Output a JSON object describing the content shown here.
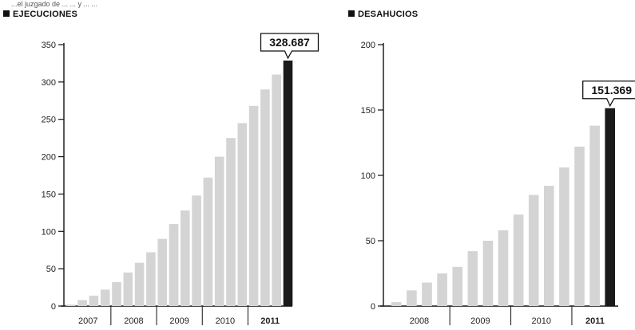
{
  "header": {
    "top_text": "...el juzgado de ... ... y ... ..."
  },
  "colors": {
    "bar": "#d4d4d4",
    "highlight": "#1a1a1a",
    "axis": "#111111"
  },
  "chart_data": [
    {
      "type": "bar",
      "title": "EJECUCIONES",
      "ylim": [
        0,
        350
      ],
      "yticks": [
        0,
        50,
        100,
        150,
        200,
        250,
        300,
        350
      ],
      "xgroups": [
        "2007",
        "2008",
        "2009",
        "2010",
        "2011"
      ],
      "highlight": {
        "label": "328.687",
        "value": 328.687
      },
      "values": [
        2,
        8,
        14,
        22,
        32,
        45,
        58,
        72,
        90,
        110,
        128,
        148,
        172,
        200,
        225,
        245,
        268,
        290,
        310,
        328.687
      ],
      "groups": [
        {
          "label": "2007",
          "start": 0,
          "end": 4
        },
        {
          "label": "2008",
          "start": 4,
          "end": 8
        },
        {
          "label": "2009",
          "start": 8,
          "end": 12
        },
        {
          "label": "2010",
          "start": 12,
          "end": 16
        },
        {
          "label": "2011",
          "start": 16,
          "end": 20
        }
      ]
    },
    {
      "type": "bar",
      "title": "DESAHUCIOS",
      "ylim": [
        0,
        200
      ],
      "yticks": [
        0,
        50,
        100,
        150,
        200
      ],
      "xgroups": [
        "2008",
        "2009",
        "2010",
        "2011"
      ],
      "highlight": {
        "label": "151.369",
        "value": 151.369
      },
      "values": [
        3,
        12,
        18,
        25,
        30,
        42,
        50,
        58,
        70,
        85,
        92,
        106,
        122,
        138,
        151.369
      ],
      "groups": [
        {
          "label": "2008",
          "start": 0,
          "end": 4
        },
        {
          "label": "2009",
          "start": 4,
          "end": 8
        },
        {
          "label": "2010",
          "start": 8,
          "end": 12
        },
        {
          "label": "2011",
          "start": 12,
          "end": 15
        }
      ]
    }
  ]
}
